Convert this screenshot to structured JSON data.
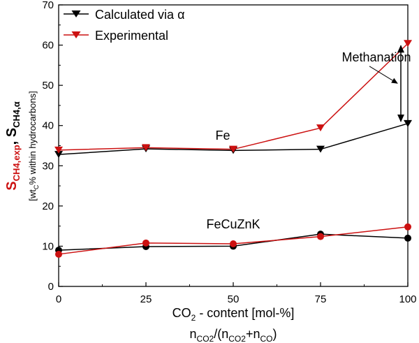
{
  "chart_data": {
    "type": "line",
    "x": [
      0,
      25,
      50,
      75,
      100
    ],
    "xlim": [
      0,
      100
    ],
    "ylim": [
      0,
      70
    ],
    "xticks": [
      0,
      25,
      50,
      75,
      100
    ],
    "yticks": [
      0,
      10,
      20,
      30,
      40,
      50,
      60,
      70
    ],
    "xlabel": "CO2 - content [mol-%]",
    "xlabel2": "nCO2/(nCO2+nCO)",
    "ylabel": "SCH4,exp, SCH4,α [wtC% within hydrocarbons]",
    "legend": {
      "position": "top-left",
      "entries": [
        {
          "label": "Calculated via α",
          "color": "#000000",
          "marker": "triangle-down"
        },
        {
          "label": "Experimental",
          "color": "#cc1111",
          "marker": "triangle-down"
        }
      ]
    },
    "series": [
      {
        "name": "Calculated via α",
        "group": "Fe",
        "color": "#000000",
        "marker": "triangle-down",
        "values": [
          32.8,
          34.2,
          33.8,
          34.1,
          40.5
        ]
      },
      {
        "name": "Experimental",
        "group": "Fe",
        "color": "#cc1111",
        "marker": "triangle-down",
        "values": [
          33.9,
          34.5,
          34.1,
          39.4,
          60.4
        ]
      },
      {
        "name": "Calculated via α",
        "group": "FeCuZnK",
        "color": "#000000",
        "marker": "circle",
        "values": [
          9.0,
          9.9,
          10.0,
          13.0,
          12.0
        ]
      },
      {
        "name": "Experimental",
        "group": "FeCuZnK",
        "color": "#cc1111",
        "marker": "circle",
        "values": [
          8.0,
          10.8,
          10.6,
          12.4,
          14.8
        ]
      }
    ],
    "annotations": [
      {
        "text": "Fe",
        "x": 47,
        "y": 37.5
      },
      {
        "text": "FeCuZnK",
        "x": 50,
        "y": 15.5
      },
      {
        "text": "Methanation",
        "x": 91,
        "y": 57.0
      }
    ],
    "arrow_range": {
      "x": 98,
      "from": 40.5,
      "to": 60.4
    },
    "grid": false,
    "colors": {
      "calculated": "#000000",
      "experimental": "#cc1111"
    }
  }
}
